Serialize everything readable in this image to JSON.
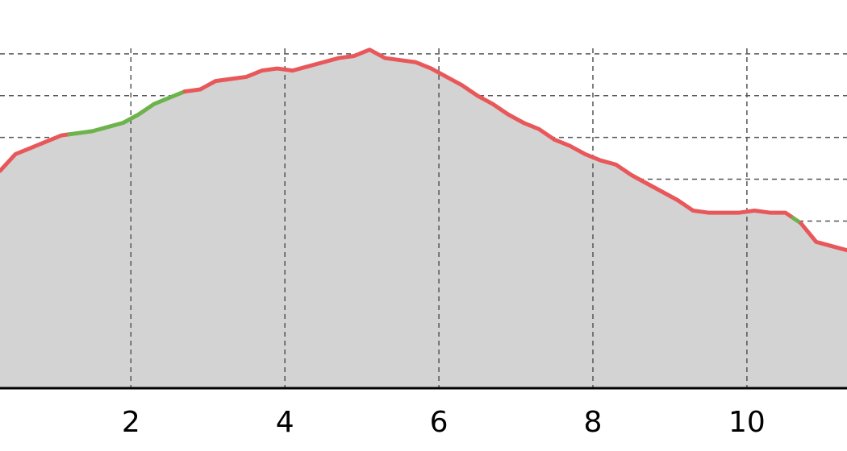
{
  "chart_data": {
    "type": "area",
    "title": "",
    "xlabel": "",
    "ylabel": "",
    "xlim": [
      0.3,
      11.3
    ],
    "ylim": [
      0,
      9
    ],
    "grid": true,
    "x_ticks": [
      "2",
      "4",
      "6",
      "8",
      "10"
    ],
    "x_tick_values": [
      2,
      4,
      6,
      8,
      10
    ],
    "y_gridlines": [
      1,
      2,
      3,
      4,
      5,
      6,
      7,
      8
    ],
    "series": [
      {
        "x": [
          0.3,
          0.5,
          0.7,
          0.9,
          1.1,
          1.3,
          1.5,
          1.7,
          1.9,
          2.1,
          2.3,
          2.5,
          2.7,
          2.9,
          3.1,
          3.3,
          3.5,
          3.7,
          3.9,
          4.1,
          4.3,
          4.5,
          4.7,
          4.9,
          5.1,
          5.3,
          5.5,
          5.7,
          5.9,
          6.1,
          6.3,
          6.5,
          6.7,
          6.9,
          7.1,
          7.3,
          7.5,
          7.7,
          7.9,
          8.1,
          8.3,
          8.5,
          8.7,
          8.9,
          9.1,
          9.3,
          9.5,
          9.7,
          9.9,
          10.1,
          10.3,
          10.5,
          10.7,
          10.9,
          11.1,
          11.3
        ],
        "y": [
          5.2,
          5.6,
          5.75,
          5.9,
          6.05,
          6.1,
          6.15,
          6.25,
          6.35,
          6.55,
          6.8,
          6.95,
          7.1,
          7.15,
          7.35,
          7.4,
          7.45,
          7.6,
          7.65,
          7.6,
          7.7,
          7.8,
          7.9,
          7.95,
          8.1,
          7.9,
          7.85,
          7.8,
          7.65,
          7.45,
          7.25,
          7.0,
          6.8,
          6.55,
          6.35,
          6.2,
          5.95,
          5.8,
          5.6,
          5.45,
          5.35,
          5.1,
          4.9,
          4.7,
          4.5,
          4.25,
          4.2,
          4.2,
          4.2,
          4.25,
          4.2,
          4.2,
          3.95,
          3.5,
          3.4,
          3.3
        ]
      }
    ],
    "segments": [
      {
        "from": 0.3,
        "to": 1.2,
        "color": "#e8585a"
      },
      {
        "from": 1.2,
        "to": 2.7,
        "color": "#6db34b"
      },
      {
        "from": 2.7,
        "to": 10.6,
        "color": "#e8585a"
      },
      {
        "from": 10.6,
        "to": 10.7,
        "color": "#6db34b"
      },
      {
        "from": 10.7,
        "to": 11.3,
        "color": "#e8585a"
      }
    ],
    "colors": {
      "fill": "#d3d3d3",
      "climb": "#e8585a",
      "flat": "#6db34b",
      "grid": "#555555",
      "axis": "#000000"
    }
  }
}
